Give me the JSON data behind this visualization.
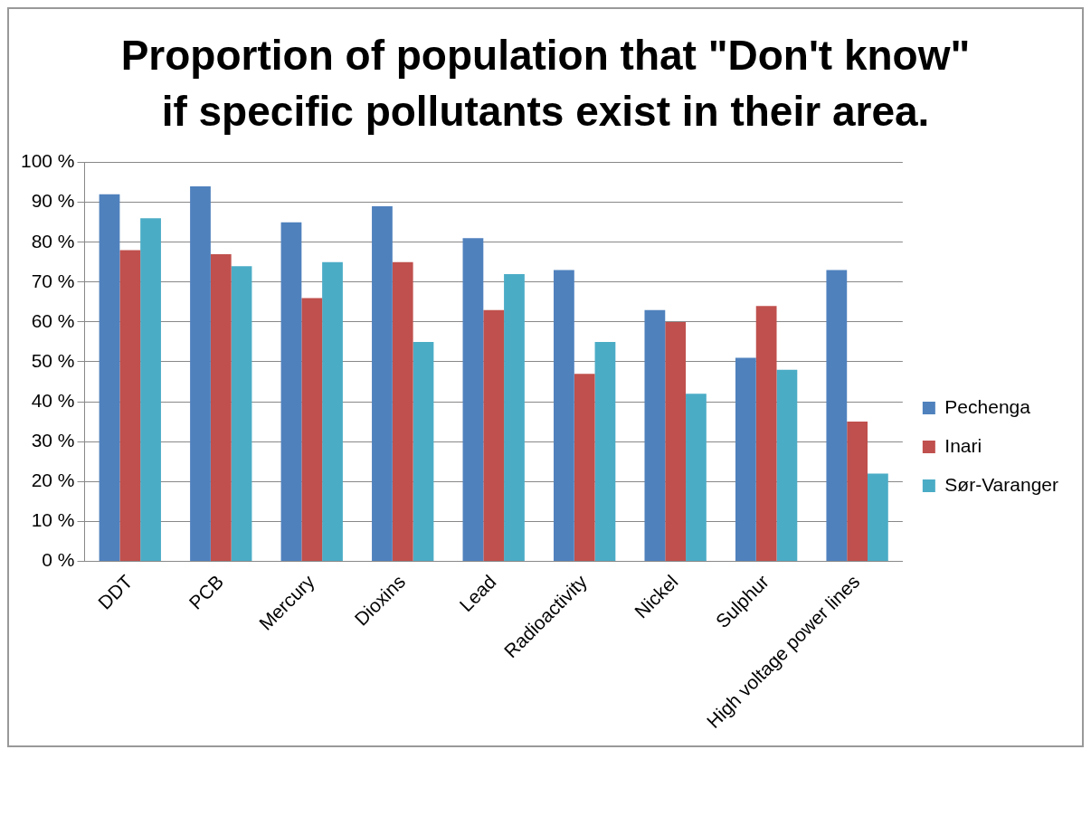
{
  "chart_data": {
    "type": "bar",
    "title": "Proportion of population that \"Don't know\" if specific pollutants exist in their area.",
    "categories": [
      "DDT",
      "PCB",
      "Mercury",
      "Dioxins",
      "Lead",
      "Radioactivity",
      "Nickel",
      "Sulphur",
      "High voltage power lines"
    ],
    "series": [
      {
        "name": "Pechenga",
        "color": "#4f81bd",
        "values": [
          92,
          94,
          85,
          89,
          81,
          73,
          63,
          51,
          73
        ]
      },
      {
        "name": "Inari",
        "color": "#c0504d",
        "values": [
          78,
          77,
          66,
          75,
          63,
          47,
          60,
          64,
          35
        ]
      },
      {
        "name": "Sør-Varanger",
        "color": "#4bacc6",
        "values": [
          86,
          74,
          75,
          55,
          72,
          55,
          42,
          48,
          22
        ]
      }
    ],
    "ylim": [
      0,
      100
    ],
    "yticks": [
      {
        "value": 0,
        "label": "0 %"
      },
      {
        "value": 10,
        "label": "10 %"
      },
      {
        "value": 20,
        "label": "20 %"
      },
      {
        "value": 30,
        "label": "30 %"
      },
      {
        "value": 40,
        "label": "40 %"
      },
      {
        "value": 50,
        "label": "50 %"
      },
      {
        "value": 60,
        "label": "60 %"
      },
      {
        "value": 70,
        "label": "70 %"
      },
      {
        "value": 80,
        "label": "80 %"
      },
      {
        "value": 90,
        "label": "90 %"
      },
      {
        "value": 100,
        "label": "100 %"
      }
    ],
    "grid": "y",
    "legend": "right"
  }
}
